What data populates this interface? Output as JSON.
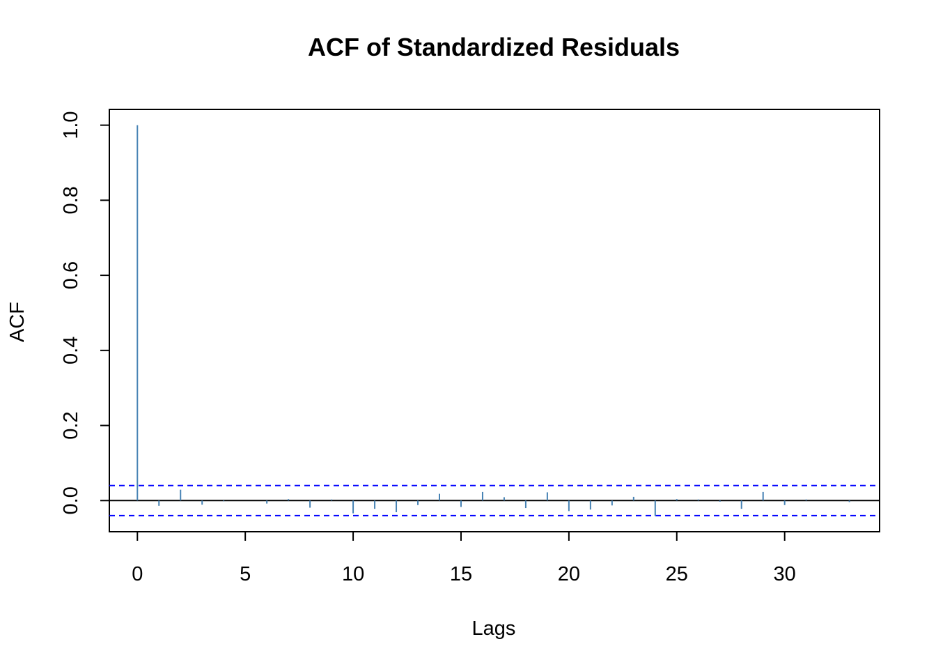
{
  "chart_data": {
    "type": "bar",
    "title": "ACF of Standardized Residuals",
    "xlabel": "Lags",
    "ylabel": "ACF",
    "xlim": [
      -1.3,
      34.4
    ],
    "ylim": [
      -0.083,
      1.042
    ],
    "x_ticks": [
      0,
      5,
      10,
      15,
      20,
      25,
      30
    ],
    "y_ticks": [
      0.0,
      0.2,
      0.4,
      0.6,
      0.8,
      1.0
    ],
    "y_tick_labels": [
      "0.0",
      "0.2",
      "0.4",
      "0.6",
      "0.8",
      "1.0"
    ],
    "lags": [
      0,
      1,
      2,
      3,
      4,
      5,
      6,
      7,
      8,
      9,
      10,
      11,
      12,
      13,
      14,
      15,
      16,
      17,
      18,
      19,
      20,
      21,
      22,
      23,
      24,
      25,
      26,
      27,
      28,
      29,
      30,
      31,
      32,
      33
    ],
    "values": [
      1.0,
      -0.014,
      0.029,
      -0.011,
      -0.002,
      0.0,
      -0.008,
      0.004,
      -0.019,
      0.003,
      -0.034,
      -0.022,
      -0.031,
      -0.012,
      0.018,
      -0.017,
      0.023,
      0.009,
      -0.02,
      0.022,
      -0.028,
      -0.024,
      -0.013,
      0.01,
      -0.041,
      0.004,
      0.003,
      -0.003,
      -0.022,
      0.023,
      -0.012,
      0.003,
      0.0,
      -0.004
    ],
    "confidence_bound": 0.04,
    "colors": {
      "spike": "#4682b4",
      "zero_line": "#000000",
      "bound_line": "#0000ff",
      "frame": "#000000"
    },
    "grid": false
  }
}
